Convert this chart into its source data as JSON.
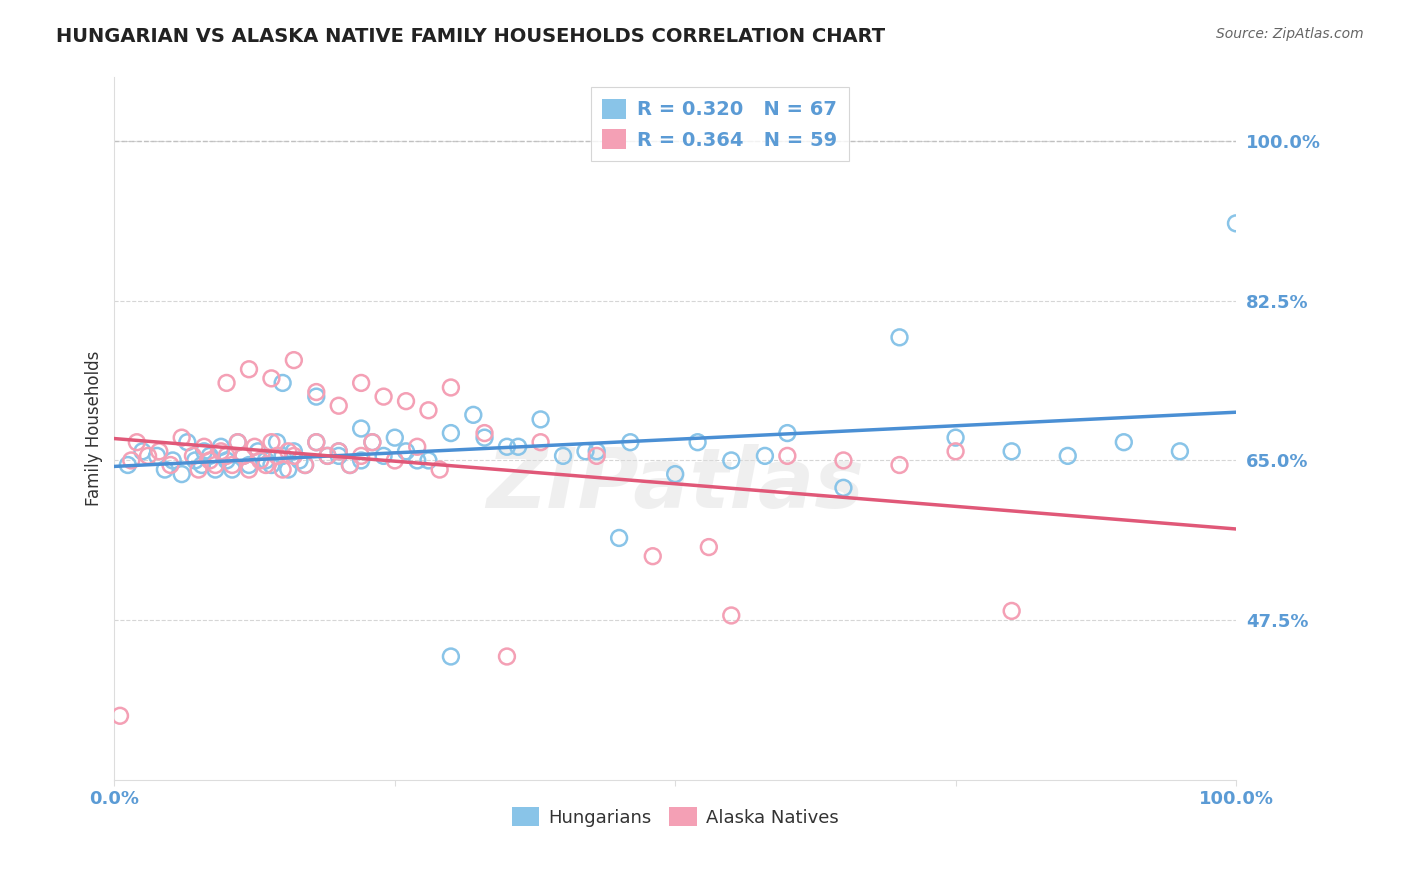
{
  "title": "HUNGARIAN VS ALASKA NATIVE FAMILY HOUSEHOLDS CORRELATION CHART",
  "source": "Source: ZipAtlas.com",
  "ylabel": "Family Households",
  "xlim": [
    0,
    100
  ],
  "ylim": [
    30,
    107
  ],
  "yticks": [
    47.5,
    65.0,
    82.5,
    100.0
  ],
  "ytick_labels": [
    "47.5%",
    "65.0%",
    "82.5%",
    "100.0%"
  ],
  "xtick_labels": [
    "0.0%",
    "100.0%"
  ],
  "blue_color": "#89C4E8",
  "pink_color": "#F4A0B5",
  "blue_line_color": "#4A8FD4",
  "pink_line_color": "#E05878",
  "axis_color": "#5B9BD5",
  "grid_color": "#CCCCCC",
  "R_blue": 0.32,
  "N_blue": 67,
  "R_pink": 0.364,
  "N_pink": 59,
  "blue_x": [
    1.2,
    2.5,
    3.8,
    4.5,
    5.2,
    6.0,
    6.5,
    7.2,
    7.8,
    8.0,
    8.5,
    9.0,
    9.5,
    10.0,
    10.5,
    11.0,
    11.5,
    12.0,
    12.8,
    13.5,
    14.0,
    14.5,
    15.0,
    15.5,
    16.0,
    16.5,
    17.0,
    18.0,
    19.0,
    20.0,
    21.0,
    22.0,
    23.0,
    24.0,
    26.0,
    28.0,
    30.0,
    33.0,
    36.0,
    40.0,
    43.0,
    46.0,
    50.0,
    55.0,
    60.0,
    65.0,
    70.0,
    75.0,
    80.0,
    85.0,
    90.0,
    95.0,
    100.0,
    18.0,
    22.0,
    27.0,
    32.0,
    38.0,
    42.0,
    15.0,
    20.0,
    25.0,
    30.0,
    35.0,
    45.0,
    52.0,
    58.0
  ],
  "blue_y": [
    64.5,
    66.0,
    65.5,
    64.0,
    65.0,
    63.5,
    67.0,
    65.0,
    64.5,
    66.0,
    65.5,
    64.0,
    66.5,
    65.0,
    64.0,
    67.0,
    65.5,
    64.5,
    66.0,
    65.0,
    64.5,
    67.0,
    65.5,
    64.0,
    66.0,
    65.0,
    64.5,
    67.0,
    65.5,
    66.0,
    64.5,
    65.0,
    67.0,
    65.5,
    66.0,
    65.0,
    68.0,
    67.5,
    66.5,
    65.5,
    66.0,
    67.0,
    63.5,
    65.0,
    68.0,
    62.0,
    78.5,
    67.5,
    66.0,
    65.5,
    67.0,
    66.0,
    91.0,
    72.0,
    68.5,
    65.0,
    70.0,
    69.5,
    66.0,
    73.5,
    65.5,
    67.5,
    43.5,
    66.5,
    56.5,
    67.0,
    65.5
  ],
  "pink_x": [
    0.5,
    1.5,
    2.0,
    3.0,
    4.0,
    5.0,
    6.0,
    7.0,
    7.5,
    8.0,
    8.5,
    9.0,
    9.5,
    10.0,
    10.5,
    11.0,
    11.5,
    12.0,
    12.5,
    13.0,
    13.5,
    14.0,
    14.5,
    15.0,
    15.5,
    16.0,
    17.0,
    18.0,
    19.0,
    20.0,
    21.0,
    22.0,
    23.0,
    25.0,
    27.0,
    29.0,
    33.0,
    38.0,
    43.0,
    48.0,
    53.0,
    55.0,
    60.0,
    65.0,
    70.0,
    75.0,
    80.0,
    10.0,
    12.0,
    14.0,
    16.0,
    18.0,
    20.0,
    22.0,
    24.0,
    26.0,
    28.0,
    30.0,
    35.0
  ],
  "pink_y": [
    37.0,
    65.0,
    67.0,
    65.5,
    66.0,
    64.5,
    67.5,
    65.5,
    64.0,
    66.5,
    65.0,
    64.5,
    66.0,
    65.5,
    64.5,
    67.0,
    65.5,
    64.0,
    66.5,
    65.0,
    64.5,
    67.0,
    65.5,
    64.0,
    66.0,
    65.5,
    64.5,
    67.0,
    65.5,
    66.0,
    64.5,
    65.5,
    67.0,
    65.0,
    66.5,
    64.0,
    68.0,
    67.0,
    65.5,
    54.5,
    55.5,
    48.0,
    65.5,
    65.0,
    64.5,
    66.0,
    48.5,
    73.5,
    75.0,
    74.0,
    76.0,
    72.5,
    71.0,
    73.5,
    72.0,
    71.5,
    70.5,
    73.0,
    43.5
  ],
  "watermark": "ZIPatlas"
}
